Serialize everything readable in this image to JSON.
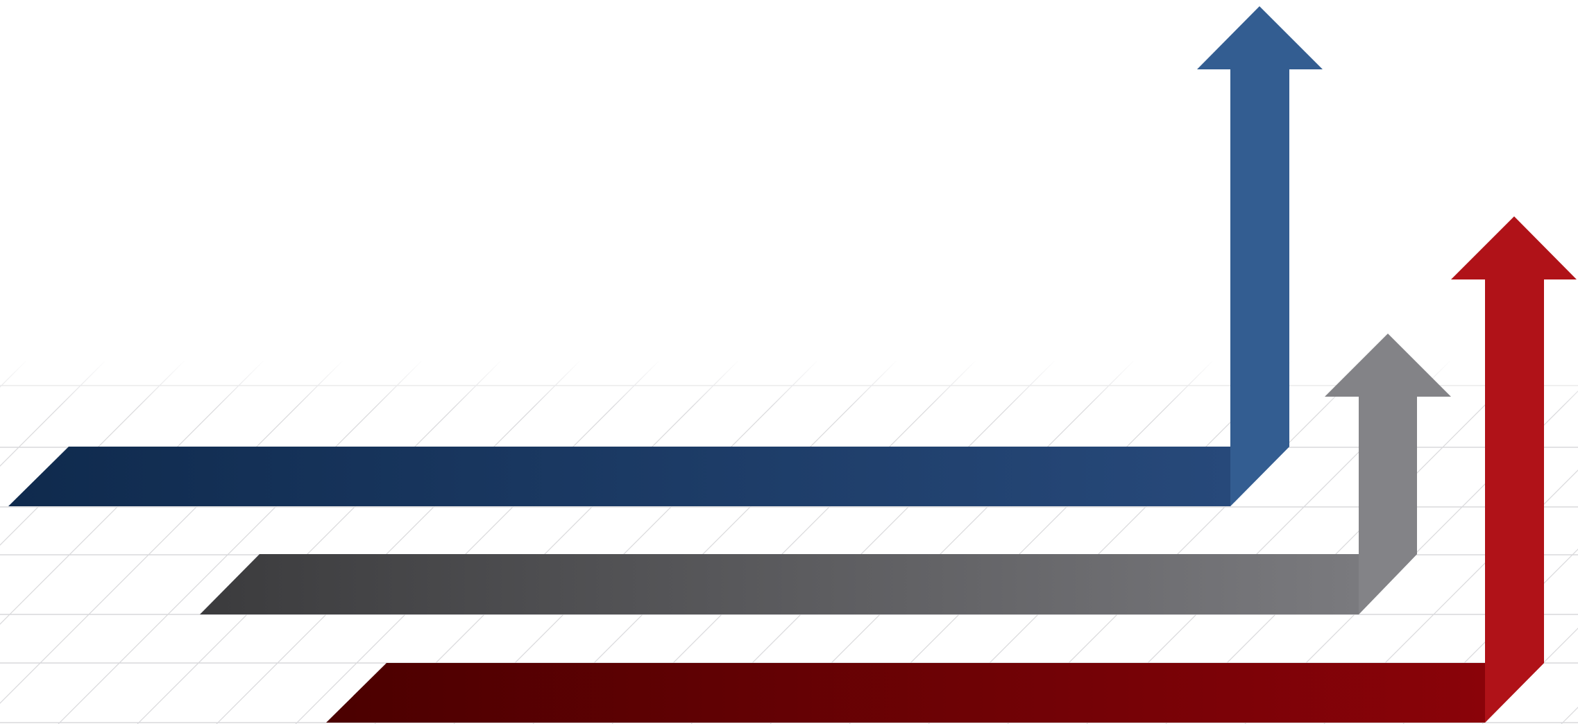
{
  "colors": {
    "background": "#ffffff",
    "grid_line": "#d9d9dc",
    "blue_dark": "#0f2a4d",
    "blue_mid": "#27497a",
    "blue_light": "#335d91",
    "gray_dark": "#3b3b3d",
    "gray_mid": "#6a6a6d",
    "gray_light": "#838387",
    "red_dark": "#4b0000",
    "red_mid": "#8a0309",
    "red_light": "#b01218"
  },
  "arrows": [
    {
      "id": "blue",
      "name": "blue-arrow",
      "order": 1,
      "color_key": "blue"
    },
    {
      "id": "gray",
      "name": "gray-arrow",
      "order": 2,
      "color_key": "gray"
    },
    {
      "id": "red",
      "name": "red-arrow",
      "order": 3,
      "color_key": "red"
    }
  ],
  "texts": []
}
